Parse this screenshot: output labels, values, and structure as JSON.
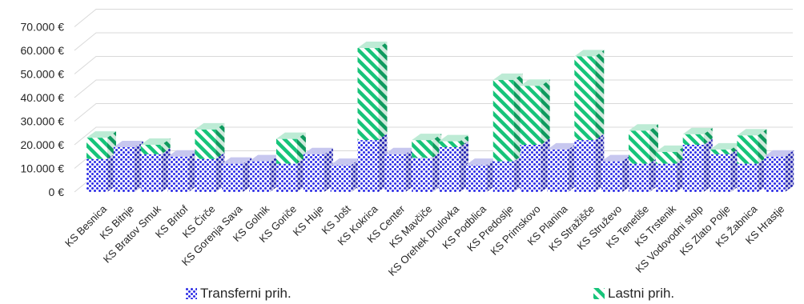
{
  "chart_data": {
    "type": "bar",
    "stacked": true,
    "three_d": true,
    "categories": [
      "KS Besnica",
      "KS Bitnje",
      "KS Bratov Smuk",
      "KS Britof",
      "KS Čirče",
      "KS Gorenja Sava",
      "KS Golnik",
      "KS Goriče",
      "KS Huje",
      "KS Jošt",
      "KS Kokrica",
      "KS Center",
      "KS Mavčiče",
      "KS Orehek Drulovka",
      "KS Podblica",
      "KS Predoslje",
      "KS Primskovo",
      "KS Planina",
      "KS Stražišče",
      "KS Struževo",
      "KS Tenetiše",
      "KS Trstenik",
      "KS Vodovodni stolp",
      "KS Zlato Polje",
      "KS Žabnica",
      "KS Hrastje"
    ],
    "series": [
      {
        "name": "Transferni prih.",
        "color": "#2e2ee6",
        "pattern": "dots",
        "values": [
          14000,
          19000,
          16000,
          15000,
          14000,
          12000,
          13000,
          12000,
          16000,
          11500,
          22000,
          16000,
          14500,
          19000,
          11500,
          13000,
          20000,
          18000,
          22000,
          13000,
          12000,
          12000,
          20000,
          16000,
          12000,
          15000
        ]
      },
      {
        "name": "Lastni prih.",
        "color": "#17c47a",
        "pattern": "diagonal-stripes",
        "values": [
          9000,
          0,
          4000,
          0,
          12500,
          0,
          0,
          10500,
          0,
          0,
          39000,
          0,
          7500,
          2500,
          0,
          34500,
          25000,
          0,
          35500,
          0,
          14000,
          5000,
          4500,
          2000,
          12000,
          0
        ]
      }
    ],
    "y_ticks": [
      "0 €",
      "10.000 €",
      "20.000 €",
      "30.000 €",
      "40.000 €",
      "50.000 €",
      "60.000 €",
      "70.000 €"
    ],
    "ylim": [
      0,
      70000
    ],
    "grid": true,
    "legend": "bottom",
    "title": "",
    "xlabel": "",
    "ylabel": ""
  }
}
